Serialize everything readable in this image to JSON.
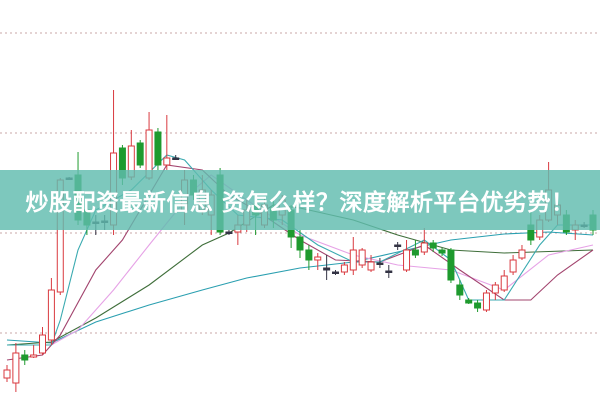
{
  "title": "炒股配资最新信息 资怎么样？深度解析平台优劣势！",
  "colors": {
    "up": "#d9393f",
    "down": "#1e9a2e",
    "doji": "#333344",
    "grid": "#c9a7a7",
    "banner": "#60bcae"
  },
  "chart_data": {
    "type": "candlestick",
    "title": "",
    "xlabel": "",
    "ylabel": "",
    "grid": true,
    "ylim": [
      0,
      40
    ],
    "candles": [
      [
        2.2,
        3.5,
        1.8,
        3.0
      ],
      [
        1.7,
        5.7,
        0.8,
        4.7
      ],
      [
        4.5,
        5.0,
        3.5,
        4.0
      ],
      [
        4.3,
        5.5,
        4.2,
        4.5
      ],
      [
        4.7,
        7.3,
        4.5,
        6.5
      ],
      [
        6.0,
        12.2,
        5.5,
        11.0
      ],
      [
        10.8,
        22.2,
        10.5,
        22.0
      ],
      [
        22.2,
        22.3,
        22.1,
        22.2
      ],
      [
        22.5,
        24.8,
        17.5,
        18.0
      ],
      [
        19.0,
        19.5,
        16.5,
        17.5
      ],
      [
        17.8,
        18.5,
        16.5,
        17.8
      ],
      [
        17.8,
        18.5,
        17.0,
        17.9
      ],
      [
        17.5,
        31.0,
        16.5,
        24.7
      ],
      [
        25.2,
        25.5,
        21.5,
        22.2
      ],
      [
        22.3,
        27.0,
        22.0,
        25.4
      ],
      [
        25.7,
        26.0,
        23.2,
        23.5
      ],
      [
        22.2,
        28.8,
        22.0,
        27.0
      ],
      [
        26.8,
        27.2,
        23.0,
        23.5
      ],
      [
        23.5,
        28.5,
        23.0,
        24.2
      ],
      [
        24.2,
        24.5,
        24.0,
        24.1
      ],
      [
        19.0,
        23.0,
        17.5,
        22.0
      ],
      [
        22.0,
        22.5,
        20.0,
        20.5
      ],
      [
        19.0,
        22.5,
        18.5,
        21.0
      ],
      [
        18.5,
        21.0,
        16.5,
        20.5
      ],
      [
        22.5,
        23.2,
        16.5,
        16.8
      ],
      [
        16.8,
        17.0,
        16.5,
        16.7
      ],
      [
        16.8,
        18.5,
        15.5,
        17.5
      ],
      [
        17.5,
        20.0,
        16.8,
        19.0
      ],
      [
        19.5,
        20.0,
        16.5,
        18.5
      ],
      [
        17.5,
        20.2,
        17.2,
        19.5
      ],
      [
        19.2,
        20.0,
        17.2,
        18.0
      ],
      [
        18.5,
        20.5,
        17.5,
        20.0
      ],
      [
        19.0,
        19.5,
        15.2,
        16.3
      ],
      [
        16.3,
        17.0,
        14.2,
        15.0
      ],
      [
        15.0,
        15.5,
        13.0,
        14.0
      ],
      [
        14.0,
        14.7,
        13.0,
        14.3
      ],
      [
        13.2,
        14.5,
        12.0,
        13.0
      ],
      [
        12.8,
        13.0,
        12.5,
        12.8
      ],
      [
        12.8,
        13.8,
        12.5,
        13.5
      ],
      [
        13.0,
        16.3,
        12.5,
        15.0
      ],
      [
        13.5,
        15.2,
        13.2,
        15.0
      ],
      [
        13.0,
        14.5,
        12.8,
        13.8
      ],
      [
        13.7,
        14.2,
        13.2,
        13.6
      ],
      [
        12.9,
        13.5,
        12.2,
        12.8
      ],
      [
        15.5,
        15.8,
        15.0,
        15.4
      ],
      [
        13.0,
        16.0,
        12.8,
        15.0
      ],
      [
        15.0,
        16.0,
        14.2,
        14.5
      ],
      [
        14.8,
        17.2,
        14.5,
        15.7
      ],
      [
        15.7,
        16.0,
        14.8,
        15.2
      ],
      [
        15.0,
        15.2,
        14.4,
        14.7
      ],
      [
        15.0,
        15.2,
        11.7,
        12.0
      ],
      [
        11.5,
        12.0,
        10.0,
        10.5
      ],
      [
        10.0,
        10.2,
        9.6,
        9.7
      ],
      [
        9.7,
        10.0,
        8.8,
        9.2
      ],
      [
        9.0,
        11.0,
        8.8,
        10.7
      ],
      [
        10.7,
        11.8,
        10.0,
        11.5
      ],
      [
        11.0,
        13.0,
        10.8,
        12.4
      ],
      [
        12.8,
        14.5,
        12.5,
        14.0
      ],
      [
        14.2,
        15.5,
        14.0,
        15.0
      ],
      [
        17.5,
        19.0,
        15.5,
        16.0
      ],
      [
        16.3,
        18.5,
        16.0,
        18.0
      ],
      [
        18.0,
        23.8,
        17.8,
        21.0
      ],
      [
        18.5,
        20.0,
        17.5,
        19.5
      ],
      [
        18.5,
        19.0,
        16.5,
        16.8
      ],
      [
        17.0,
        18.0,
        16.0,
        17.5
      ],
      [
        17.5,
        17.8,
        17.2,
        17.4
      ],
      [
        18.5,
        19.0,
        16.5,
        17.0
      ]
    ],
    "candle_fields": [
      "open",
      "high",
      "low",
      "close"
    ],
    "moving_averages": [
      {
        "color": "#2a9fb0",
        "points": [
          [
            0,
            6.0
          ],
          [
            5,
            5.7
          ],
          [
            10,
            7.8
          ],
          [
            16,
            9.5
          ],
          [
            22,
            11.0
          ],
          [
            27,
            12.2
          ],
          [
            33,
            13.2
          ],
          [
            39,
            13.8
          ],
          [
            44,
            14.8
          ],
          [
            50,
            16.0
          ],
          [
            56,
            16.6
          ],
          [
            61,
            16.8
          ],
          [
            66,
            16.5
          ]
        ]
      },
      {
        "color": "#3f6e3a",
        "points": [
          [
            0,
            5.5
          ],
          [
            5,
            5.8
          ],
          [
            10,
            8.2
          ],
          [
            16,
            11.5
          ],
          [
            22,
            15.5
          ],
          [
            25,
            16.7
          ],
          [
            30,
            19.5
          ],
          [
            33,
            19.2
          ],
          [
            39,
            18.0
          ],
          [
            44,
            16.5
          ],
          [
            50,
            15.0
          ],
          [
            56,
            14.7
          ],
          [
            66,
            15.0
          ]
        ]
      },
      {
        "color": "#e6a2e6",
        "points": [
          [
            0,
            5.5
          ],
          [
            5,
            5.5
          ],
          [
            8,
            7.0
          ],
          [
            12,
            11.0
          ],
          [
            16,
            15.5
          ],
          [
            21,
            21.0
          ],
          [
            23,
            22.5
          ],
          [
            27,
            20.0
          ],
          [
            33,
            16.5
          ],
          [
            39,
            14.5
          ],
          [
            44,
            13.5
          ],
          [
            50,
            13.0
          ],
          [
            56,
            11.0
          ],
          [
            61,
            14.5
          ],
          [
            66,
            15.5
          ]
        ]
      },
      {
        "color": "#a2446e",
        "points": [
          [
            0,
            4.0
          ],
          [
            4,
            4.5
          ],
          [
            6,
            6.5
          ],
          [
            10,
            13.0
          ],
          [
            13,
            16.0
          ],
          [
            15,
            19.0
          ],
          [
            18,
            23.5
          ],
          [
            22,
            23.0
          ],
          [
            25,
            20.5
          ],
          [
            28,
            19.0
          ],
          [
            33,
            16.0
          ],
          [
            37,
            14.0
          ],
          [
            42,
            13.8
          ],
          [
            47,
            15.5
          ],
          [
            51,
            13.0
          ],
          [
            56,
            10.0
          ],
          [
            59,
            10.0
          ],
          [
            62,
            12.5
          ],
          [
            66,
            15.0
          ]
        ]
      },
      {
        "color": "#3aaab0",
        "points": [
          [
            0,
            5.5
          ],
          [
            5,
            5.5
          ],
          [
            6,
            8.0
          ],
          [
            8,
            15.0
          ],
          [
            10,
            19.0
          ],
          [
            14,
            21.0
          ],
          [
            18,
            24.5
          ],
          [
            20,
            24.0
          ],
          [
            23,
            21.0
          ],
          [
            26,
            18.5
          ],
          [
            31,
            18.0
          ],
          [
            35,
            15.5
          ],
          [
            39,
            13.8
          ],
          [
            42,
            13.8
          ],
          [
            47,
            16.0
          ],
          [
            50,
            14.0
          ],
          [
            52,
            10.0
          ],
          [
            56,
            10.0
          ],
          [
            60,
            15.5
          ],
          [
            62,
            17.5
          ],
          [
            66,
            17.5
          ]
        ]
      }
    ]
  }
}
